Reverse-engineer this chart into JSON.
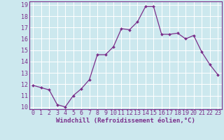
{
  "x": [
    0,
    1,
    2,
    3,
    4,
    5,
    6,
    7,
    8,
    9,
    10,
    11,
    12,
    13,
    14,
    15,
    16,
    17,
    18,
    19,
    20,
    21,
    22,
    23
  ],
  "y": [
    11.9,
    11.7,
    11.5,
    10.2,
    10.0,
    11.0,
    11.6,
    12.4,
    14.6,
    14.6,
    15.3,
    16.9,
    16.8,
    17.5,
    18.85,
    18.85,
    16.4,
    16.4,
    16.5,
    16.0,
    16.3,
    14.85,
    13.75,
    12.85
  ],
  "xlabel": "Windchill (Refroidissement éolien,°C)",
  "ylim_min": 9.8,
  "ylim_max": 19.3,
  "xlim_min": -0.5,
  "xlim_max": 23.5,
  "yticks": [
    10,
    11,
    12,
    13,
    14,
    15,
    16,
    17,
    18,
    19
  ],
  "xticks": [
    0,
    1,
    2,
    3,
    4,
    5,
    6,
    7,
    8,
    9,
    10,
    11,
    12,
    13,
    14,
    15,
    16,
    17,
    18,
    19,
    20,
    21,
    22,
    23
  ],
  "line_color": "#7b2f8b",
  "marker_color": "#7b2f8b",
  "bg_color": "#cce8ee",
  "grid_color": "#ffffff",
  "xlabel_fontsize": 6.5,
  "tick_fontsize": 6.0,
  "spine_color": "#7b2f8b"
}
